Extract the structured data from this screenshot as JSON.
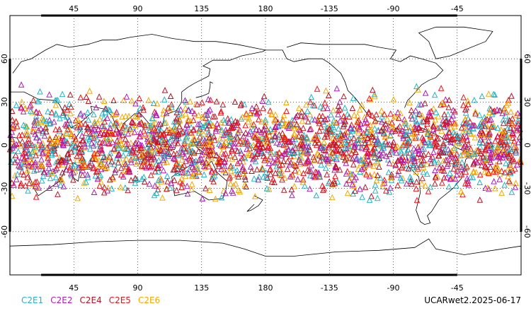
{
  "map": {
    "x_ticks": [
      "45",
      "90",
      "135",
      "180",
      "-135",
      "-90",
      "-45"
    ],
    "y_ticks": [
      "60",
      "30",
      "0",
      "-30",
      "-60"
    ],
    "lat_range": [
      -90,
      90
    ],
    "lon_start": 0,
    "lon_end": 360,
    "grid": "dotted",
    "background": "#ffffff",
    "coastline_color": "#000000"
  },
  "legend": [
    {
      "label": "C2E1",
      "color": "#22b5c8"
    },
    {
      "label": "C2E2",
      "color": "#b01ab8"
    },
    {
      "label": "C2E4",
      "color": "#b81424"
    },
    {
      "label": "C2E5",
      "color": "#f01018"
    },
    {
      "label": "C2E6",
      "color": "#f5a800"
    }
  ],
  "product_label": "UCARwet2.2025-06-17",
  "observations": {
    "marker": "open-triangle",
    "lat_band": [
      -45,
      45
    ],
    "count": 2600
  }
}
